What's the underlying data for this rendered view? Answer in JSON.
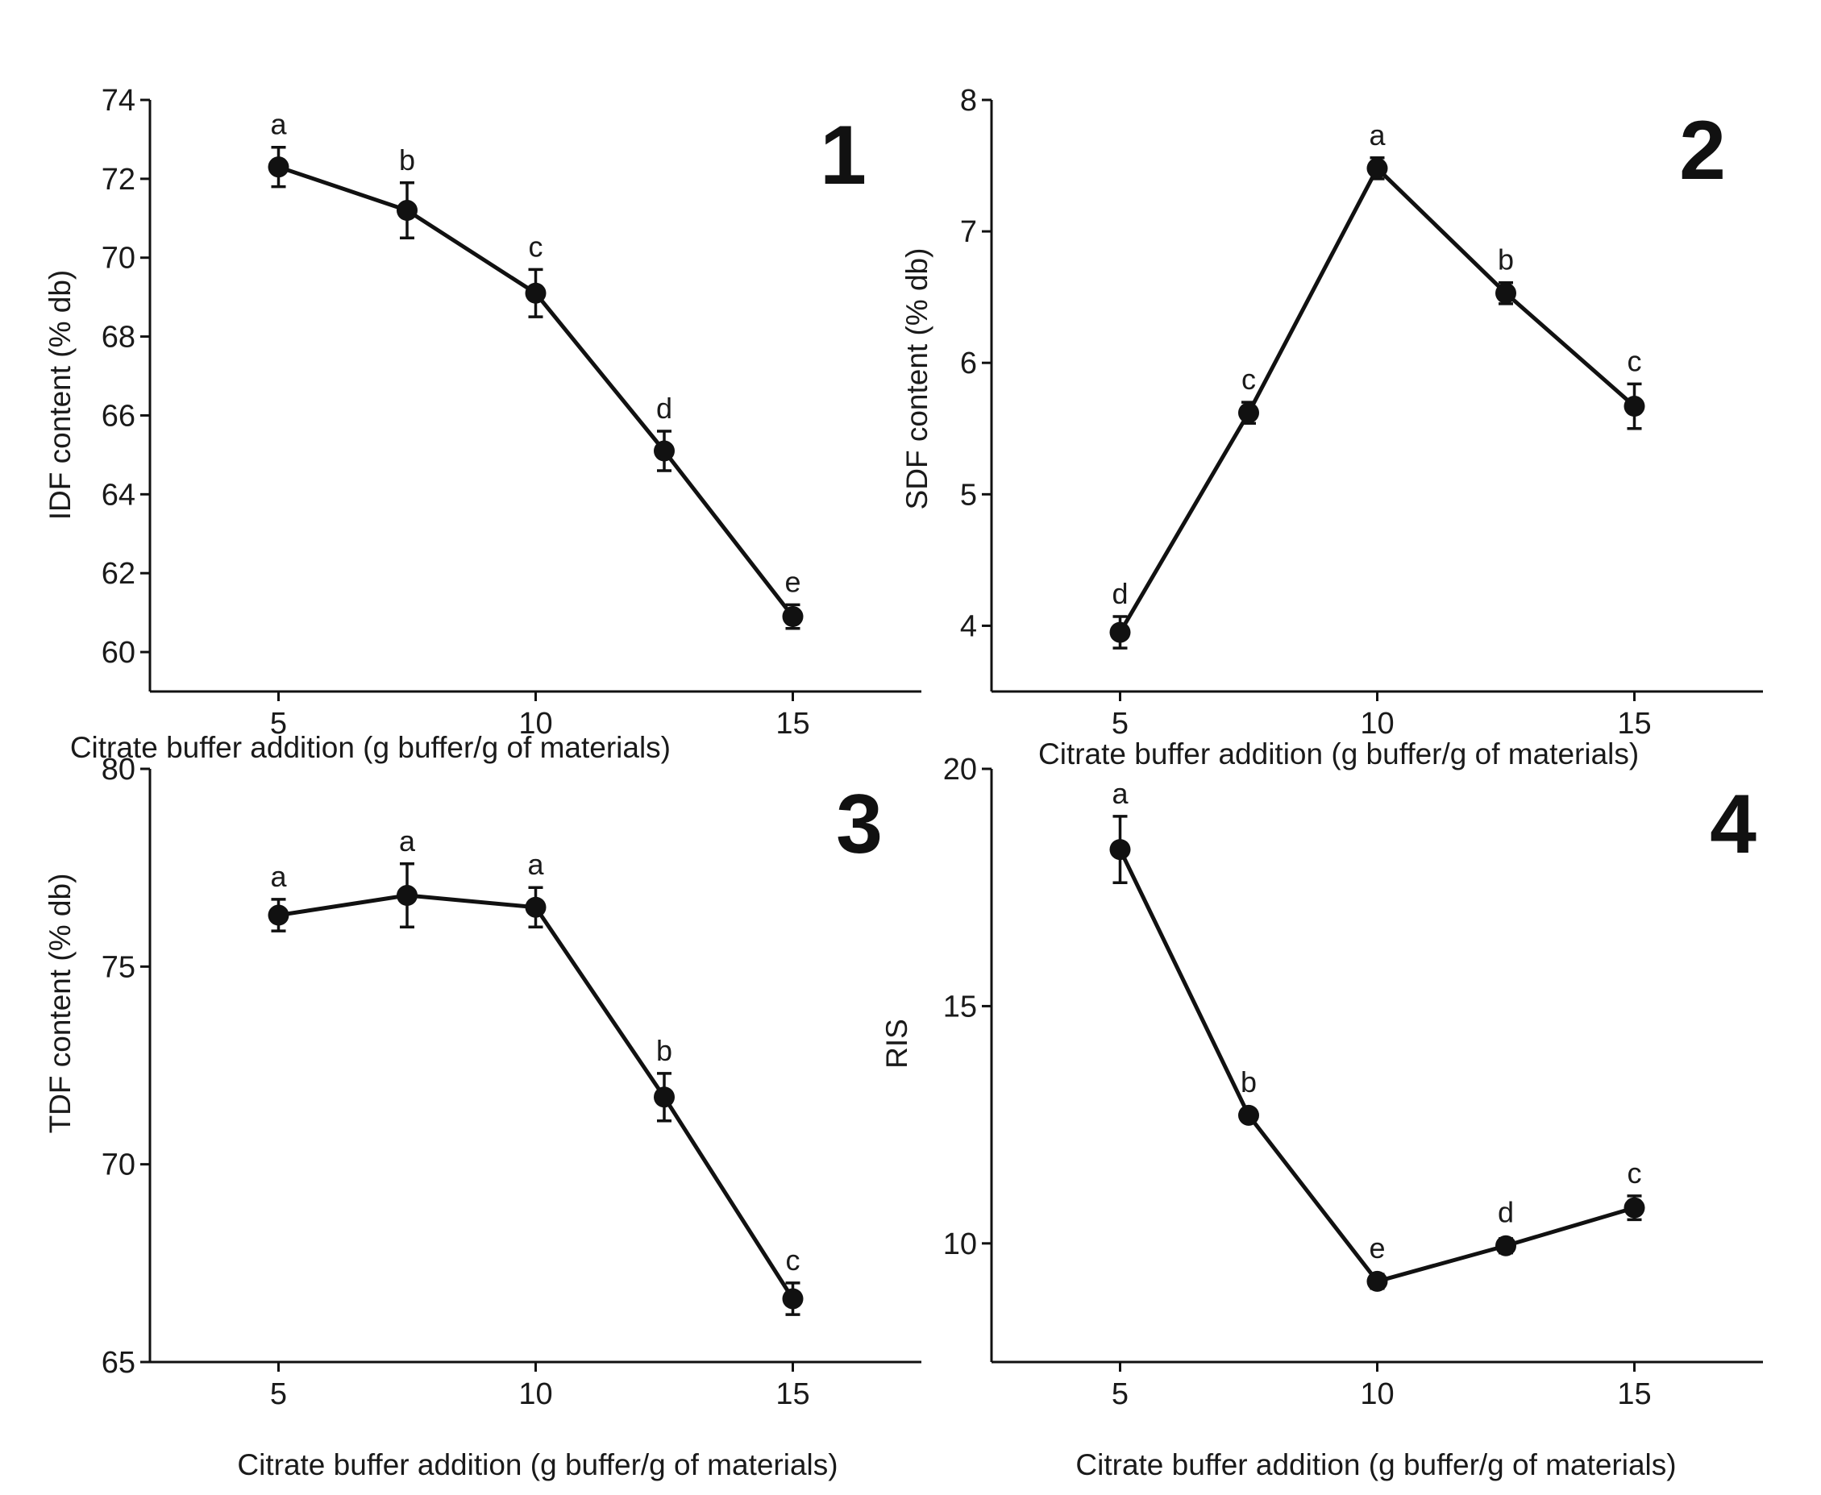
{
  "figure": {
    "colors": {
      "ink": "#111111",
      "background": "#ffffff"
    }
  },
  "chart_data": [
    {
      "panel": "1",
      "type": "line",
      "xlabel": "Citrate buffer addition (g buffer/g of materials)",
      "ylabel": "IDF content (% db)",
      "xlim": [
        2.5,
        17.5
      ],
      "ylim": [
        59,
        74
      ],
      "xticks": [
        5,
        10,
        15
      ],
      "yticks": [
        60,
        62,
        64,
        66,
        68,
        70,
        72,
        74
      ],
      "x": [
        5,
        7.5,
        10,
        12.5,
        15
      ],
      "y": [
        72.3,
        71.2,
        69.1,
        65.1,
        60.9
      ],
      "error": [
        0.5,
        0.7,
        0.6,
        0.5,
        0.3
      ],
      "letters": [
        "a",
        "b",
        "c",
        "d",
        "e"
      ]
    },
    {
      "panel": "2",
      "type": "line",
      "xlabel": "Citrate buffer addition (g buffer/g of materials)",
      "ylabel": "SDF content (% db)",
      "xlim": [
        2.5,
        17.5
      ],
      "ylim": [
        3.5,
        8
      ],
      "xticks": [
        5,
        10,
        15
      ],
      "yticks": [
        4,
        5,
        6,
        7,
        8
      ],
      "x": [
        5,
        7.5,
        10,
        12.5,
        15
      ],
      "y": [
        3.95,
        5.62,
        7.48,
        6.53,
        5.67
      ],
      "error": [
        0.12,
        0.08,
        0.08,
        0.08,
        0.17
      ],
      "letters": [
        "d",
        "c",
        "a",
        "b",
        "c"
      ]
    },
    {
      "panel": "3",
      "type": "line",
      "xlabel": "Citrate buffer addition (g buffer/g of materials)",
      "ylabel": "TDF content (% db)",
      "xlim": [
        2.5,
        17.5
      ],
      "ylim": [
        65,
        80
      ],
      "xticks": [
        5,
        10,
        15
      ],
      "yticks": [
        65,
        70,
        75,
        80
      ],
      "x": [
        5,
        7.5,
        10,
        12.5,
        15
      ],
      "y": [
        76.3,
        76.8,
        76.5,
        71.7,
        66.6
      ],
      "error": [
        0.4,
        0.8,
        0.5,
        0.6,
        0.4
      ],
      "letters": [
        "a",
        "a",
        "a",
        "b",
        "c"
      ]
    },
    {
      "panel": "4",
      "type": "line",
      "xlabel": "Citrate buffer addition (g buffer/g of materials)",
      "ylabel": "RIS",
      "xlim": [
        2.5,
        17.5
      ],
      "ylim": [
        7.5,
        20
      ],
      "xticks": [
        5,
        10,
        15
      ],
      "yticks": [
        10,
        15,
        20
      ],
      "x": [
        5,
        7.5,
        10,
        12.5,
        15
      ],
      "y": [
        18.3,
        12.7,
        9.2,
        9.95,
        10.75
      ],
      "error": [
        0.7,
        0.1,
        0.15,
        0.15,
        0.25
      ],
      "letters": [
        "a",
        "b",
        "e",
        "d",
        "c"
      ]
    }
  ]
}
